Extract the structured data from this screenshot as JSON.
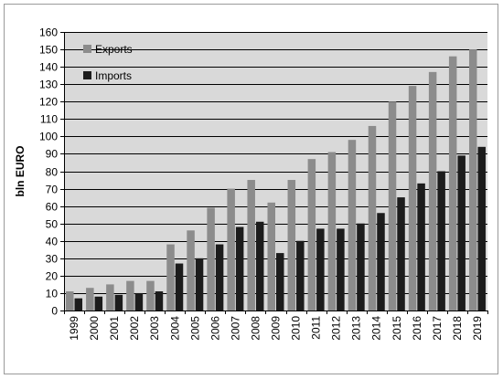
{
  "chart_data": {
    "type": "bar",
    "title": "",
    "xlabel": "",
    "ylabel": "bln EURO",
    "ylim": [
      0,
      160
    ],
    "yticks": [
      0,
      10,
      20,
      30,
      40,
      50,
      60,
      70,
      80,
      90,
      100,
      110,
      120,
      130,
      140,
      150,
      160
    ],
    "grid": true,
    "legend_position": "top-left",
    "categories": [
      "1999",
      "2000",
      "2001",
      "2002",
      "2003",
      "2004",
      "2005",
      "2006",
      "2007",
      "2008",
      "2009",
      "2010",
      "2011",
      "2012",
      "2013",
      "2014",
      "2015",
      "2016",
      "2017",
      "2018",
      "2019"
    ],
    "series": [
      {
        "name": "Exports",
        "color": "#8c8c8c",
        "values": [
          11,
          13,
          15,
          17,
          17,
          38,
          46,
          59,
          70,
          75,
          62,
          75,
          87,
          91,
          98,
          106,
          120,
          129,
          137,
          146,
          150
        ]
      },
      {
        "name": "Imports",
        "color": "#1c1c1c",
        "values": [
          7,
          8,
          9,
          10,
          11,
          27,
          30,
          38,
          48,
          51,
          33,
          40,
          47,
          47,
          50,
          56,
          65,
          73,
          80,
          89,
          94
        ]
      }
    ],
    "colors": {
      "plot_background": "#d9d9d9",
      "gridline": "#000000",
      "frame_border": "#9a9a9a"
    }
  }
}
